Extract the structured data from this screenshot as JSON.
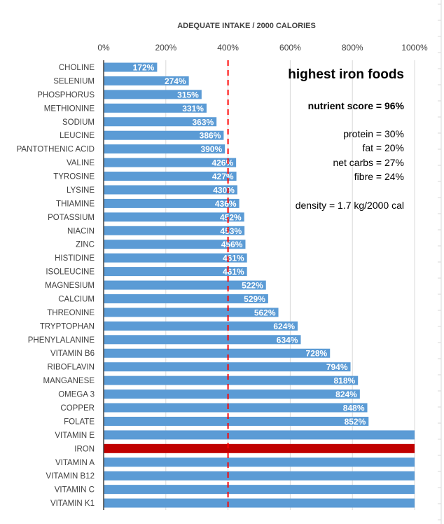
{
  "chart_data": {
    "type": "bar",
    "orientation": "horizontal",
    "title": "ADEQUATE INTAKE / 2000 CALORIES",
    "xlabel": "",
    "ylabel": "",
    "xlim": [
      0,
      1000
    ],
    "x_ticks": [
      "0%",
      "200%",
      "400%",
      "600%",
      "800%",
      "1000%"
    ],
    "reference_line": {
      "value": 400,
      "style": "dashed",
      "color": "#FF0000"
    },
    "grid": true,
    "bar_color": "#5B9BD5",
    "highlight_color": "#C00000",
    "categories": [
      "CHOLINE",
      "SELENIUM",
      "PHOSPHORUS",
      "METHIONINE",
      "SODIUM",
      "LEUCINE",
      "PANTOTHENIC ACID",
      "VALINE",
      "TYROSINE",
      "LYSINE",
      "THIAMINE",
      "POTASSIUM",
      "NIACIN",
      "ZINC",
      "HISTIDINE",
      "ISOLEUCINE",
      "MAGNESIUM",
      "CALCIUM",
      "THREONINE",
      "TRYPTOPHAN",
      "PHENYLALANINE",
      "VITAMIN B6",
      "RIBOFLAVIN",
      "MANGANESE",
      "OMEGA 3",
      "COPPER",
      "FOLATE",
      "VITAMIN E",
      "IRON",
      "VITAMIN A",
      "VITAMIN B12",
      "VITAMIN C",
      "VITAMIN K1"
    ],
    "values": [
      172,
      274,
      315,
      331,
      363,
      386,
      390,
      426,
      427,
      430,
      436,
      452,
      453,
      456,
      461,
      461,
      522,
      529,
      562,
      624,
      634,
      728,
      794,
      818,
      824,
      848,
      852,
      1000,
      1000,
      1000,
      1000,
      1000,
      1000
    ],
    "labels": [
      "172%",
      "274%",
      "315%",
      "331%",
      "363%",
      "386%",
      "390%",
      "426%",
      "427%",
      "430%",
      "436%",
      "452%",
      "453%",
      "456%",
      "461%",
      "461%",
      "522%",
      "529%",
      "562%",
      "624%",
      "634%",
      "728%",
      "794%",
      "818%",
      "824%",
      "848%",
      "852%",
      "",
      "",
      "",
      "",
      "",
      ""
    ],
    "highlight": "IRON"
  },
  "annotation": {
    "heading": "highest iron foods",
    "score": "nutrient score = 96%",
    "protein": "protein = 30%",
    "fat": "fat = 20%",
    "carbs": "net carbs = 27%",
    "fibre": "fibre = 24%",
    "density": "density = 1.7 kg/2000 cal"
  }
}
